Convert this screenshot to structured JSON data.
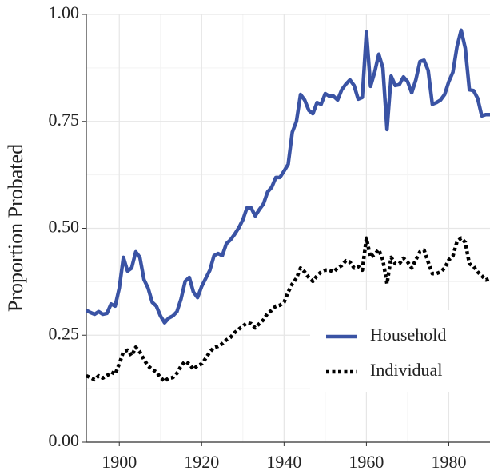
{
  "chart_data": {
    "type": "line",
    "y_label": "Proportion Probated",
    "x": [
      1892,
      1893,
      1894,
      1895,
      1896,
      1897,
      1898,
      1899,
      1900,
      1901,
      1902,
      1903,
      1904,
      1905,
      1906,
      1907,
      1908,
      1909,
      1910,
      1911,
      1912,
      1913,
      1914,
      1915,
      1916,
      1917,
      1918,
      1919,
      1920,
      1921,
      1922,
      1923,
      1924,
      1925,
      1926,
      1927,
      1928,
      1929,
      1930,
      1931,
      1932,
      1933,
      1934,
      1935,
      1936,
      1937,
      1938,
      1939,
      1940,
      1941,
      1942,
      1943,
      1944,
      1945,
      1946,
      1947,
      1948,
      1949,
      1950,
      1951,
      1952,
      1953,
      1954,
      1955,
      1956,
      1957,
      1958,
      1959,
      1960,
      1961,
      1962,
      1963,
      1964,
      1965,
      1966,
      1967,
      1968,
      1969,
      1970,
      1971,
      1972,
      1973,
      1974,
      1975,
      1976,
      1977,
      1978,
      1979,
      1980,
      1981,
      1982,
      1983,
      1984,
      1985,
      1986,
      1987,
      1988,
      1989,
      1990
    ],
    "series": [
      {
        "name": "Household",
        "color": "#3a53a4",
        "dash": false,
        "values": [
          0.308,
          0.303,
          0.299,
          0.305,
          0.299,
          0.301,
          0.323,
          0.318,
          0.36,
          0.432,
          0.4,
          0.407,
          0.445,
          0.432,
          0.38,
          0.36,
          0.327,
          0.318,
          0.295,
          0.279,
          0.29,
          0.295,
          0.305,
          0.335,
          0.376,
          0.385,
          0.351,
          0.338,
          0.364,
          0.383,
          0.402,
          0.436,
          0.441,
          0.436,
          0.464,
          0.473,
          0.486,
          0.501,
          0.52,
          0.548,
          0.548,
          0.529,
          0.544,
          0.557,
          0.585,
          0.596,
          0.619,
          0.619,
          0.634,
          0.65,
          0.725,
          0.75,
          0.813,
          0.8,
          0.776,
          0.768,
          0.794,
          0.79,
          0.815,
          0.809,
          0.809,
          0.8,
          0.824,
          0.837,
          0.847,
          0.834,
          0.802,
          0.806,
          0.959,
          0.832,
          0.865,
          0.907,
          0.875,
          0.731,
          0.856,
          0.834,
          0.836,
          0.854,
          0.843,
          0.817,
          0.847,
          0.89,
          0.893,
          0.869,
          0.79,
          0.794,
          0.8,
          0.813,
          0.843,
          0.865,
          0.925,
          0.963,
          0.921,
          0.824,
          0.822,
          0.804,
          0.763,
          0.766,
          0.766
        ]
      },
      {
        "name": "Individual",
        "color": "#000000",
        "dash": true,
        "values": [
          0.155,
          0.151,
          0.146,
          0.155,
          0.15,
          0.155,
          0.164,
          0.159,
          0.183,
          0.211,
          0.215,
          0.202,
          0.222,
          0.211,
          0.193,
          0.178,
          0.17,
          0.164,
          0.151,
          0.142,
          0.15,
          0.151,
          0.161,
          0.178,
          0.189,
          0.183,
          0.17,
          0.179,
          0.183,
          0.196,
          0.211,
          0.221,
          0.224,
          0.23,
          0.239,
          0.245,
          0.256,
          0.264,
          0.271,
          0.279,
          0.277,
          0.267,
          0.277,
          0.286,
          0.301,
          0.308,
          0.318,
          0.32,
          0.327,
          0.351,
          0.37,
          0.383,
          0.407,
          0.398,
          0.385,
          0.376,
          0.389,
          0.398,
          0.402,
          0.402,
          0.398,
          0.407,
          0.413,
          0.424,
          0.421,
          0.407,
          0.411,
          0.402,
          0.477,
          0.432,
          0.439,
          0.45,
          0.426,
          0.37,
          0.432,
          0.417,
          0.417,
          0.43,
          0.421,
          0.407,
          0.426,
          0.445,
          0.449,
          0.421,
          0.394,
          0.394,
          0.398,
          0.407,
          0.426,
          0.435,
          0.469,
          0.477,
          0.467,
          0.417,
          0.411,
          0.398,
          0.389,
          0.379,
          0.383
        ]
      }
    ],
    "xlim": [
      1892,
      1990
    ],
    "xticks": [
      1900,
      1920,
      1940,
      1960,
      1980
    ],
    "ylim": [
      0,
      1
    ],
    "yticks": [
      {
        "value": 0,
        "label": "0.00"
      },
      {
        "value": 0.25,
        "label": "0.25"
      },
      {
        "value": 0.5,
        "label": "0.50"
      },
      {
        "value": 0.75,
        "label": "0.75"
      },
      {
        "value": 1,
        "label": "1.00"
      }
    ],
    "grid": true,
    "legend": "bottom-right"
  }
}
